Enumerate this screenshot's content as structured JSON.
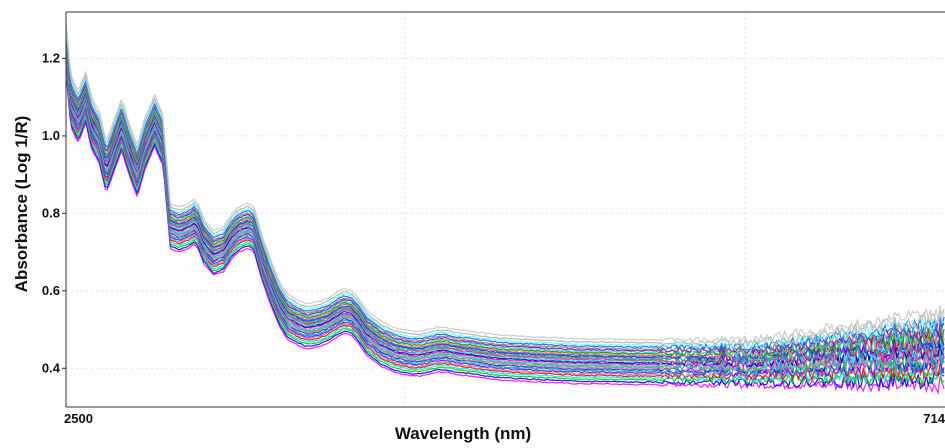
{
  "chart_data": {
    "type": "line",
    "title": "",
    "xlabel": "Wavelength (nm)",
    "ylabel": "Absorbance (Log 1/R)",
    "x_tick_labels": [
      "2500",
      "714"
    ],
    "x_range": [
      2500,
      714
    ],
    "x_reversed": true,
    "xlim_note": "x axis runs from 2500 nm (left) to 714 nm (right)",
    "ylim": [
      0.3,
      1.32
    ],
    "y_ticks": [
      0.4,
      0.6,
      0.8,
      1.0,
      1.2
    ],
    "y_tick_labels": [
      "0.4",
      "0.6",
      "0.8",
      "1.0",
      "1.2"
    ],
    "grid": true,
    "legend": "none",
    "series_count": 30,
    "base_spectrum": {
      "x": [
        2500,
        2490,
        2475,
        2460,
        2447,
        2433,
        2418,
        2404,
        2387,
        2370,
        2355,
        2340,
        2320,
        2303,
        2288,
        2270,
        2250,
        2240,
        2232,
        2220,
        2200,
        2180,
        2165,
        2150,
        2140,
        2130,
        2118,
        2100,
        2080,
        2065,
        2050,
        2030,
        2010,
        1990,
        1968,
        1950,
        1935,
        1920,
        1905,
        1890,
        1860,
        1830,
        1800,
        1780,
        1760,
        1745,
        1728,
        1710,
        1695,
        1676,
        1658,
        1640,
        1620,
        1590,
        1560,
        1510,
        1460,
        1410,
        1380,
        1350,
        1300,
        1250,
        1200,
        1150,
        1100,
        1050,
        1000,
        950,
        900,
        850,
        800,
        750,
        714
      ],
      "y": [
        1.22,
        1.08,
        1.04,
        1.09,
        1.02,
        0.99,
        0.91,
        0.96,
        1.02,
        0.95,
        0.9,
        0.97,
        1.03,
        0.98,
        0.76,
        0.75,
        0.76,
        0.77,
        0.76,
        0.72,
        0.69,
        0.7,
        0.73,
        0.75,
        0.755,
        0.76,
        0.75,
        0.67,
        0.6,
        0.555,
        0.525,
        0.51,
        0.5,
        0.505,
        0.515,
        0.53,
        0.54,
        0.535,
        0.515,
        0.485,
        0.455,
        0.438,
        0.43,
        0.43,
        0.435,
        0.44,
        0.44,
        0.435,
        0.432,
        0.43,
        0.426,
        0.423,
        0.42,
        0.418,
        0.416,
        0.413,
        0.41,
        0.41,
        0.409,
        0.408,
        0.408,
        0.408,
        0.408,
        0.408,
        0.408,
        0.408,
        0.408,
        0.408,
        0.408,
        0.408,
        0.408,
        0.408,
        0.408
      ]
    },
    "series_offsets": [
      -0.05,
      -0.044,
      -0.038,
      -0.033,
      -0.028,
      -0.024,
      -0.02,
      -0.016,
      -0.012,
      -0.009,
      -0.006,
      -0.003,
      0.0,
      0.003,
      0.006,
      0.009,
      0.012,
      0.015,
      0.018,
      0.021,
      0.024,
      0.027,
      0.03,
      0.034,
      0.038,
      0.042,
      0.047,
      0.052,
      0.058,
      0.066
    ],
    "series_colors": [
      "#ff00ff",
      "#0000ff",
      "#00cc00",
      "#00e5ff",
      "#ff0000",
      "#999999",
      "#8000ff",
      "#00b3b3",
      "#0033cc",
      "#ff66cc",
      "#33cc33",
      "#3399ff",
      "#aaaaaa",
      "#cc00cc",
      "#0000aa",
      "#00ffff",
      "#ff3366",
      "#666699",
      "#00cc99",
      "#6600cc",
      "#3366ff",
      "#ff9933",
      "#009900",
      "#33ccff",
      "#990099",
      "#7f7f7f",
      "#0066ff",
      "#66ffff",
      "#b0b0b0",
      "#c8c8c8"
    ]
  }
}
